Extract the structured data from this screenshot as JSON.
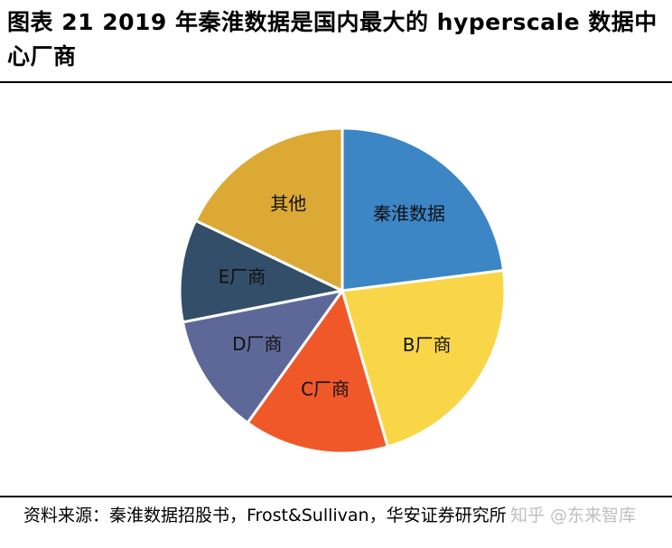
{
  "figure": {
    "title": "图表 21 2019 年秦淮数据是国内最大的 hyperscale 数据中心厂商",
    "source": "资料来源：秦淮数据招股书，Frost&Sullivan，华安证券研究所",
    "watermark": "知乎 @东来智库"
  },
  "chart_data": {
    "type": "pie",
    "title": "",
    "labels": [
      "秦淮数据",
      "B厂商",
      "C厂商",
      "D厂商",
      "E厂商",
      "其他"
    ],
    "values": [
      23.0,
      22.5,
      14.4,
      12.0,
      10.2,
      17.9
    ],
    "unit": "%",
    "colors": [
      "#3C86C6",
      "#F9D648",
      "#F0582A",
      "#5E6898",
      "#334E69",
      "#DCA934"
    ],
    "start_angle_deg": 0,
    "direction": "clockwise",
    "legend": "none",
    "labels_inside": true
  }
}
